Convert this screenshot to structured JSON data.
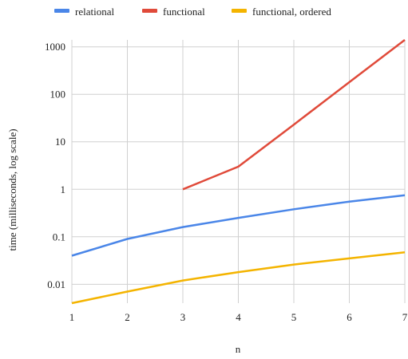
{
  "chart_data": {
    "type": "line",
    "title": "",
    "xlabel": "n",
    "ylabel": "time (milliseconds, log scale)",
    "y_scale": "log",
    "xlim": [
      1,
      7
    ],
    "ylim": [
      0.004,
      1400
    ],
    "x_ticks": [
      "1",
      "2",
      "3",
      "4",
      "5",
      "6",
      "7"
    ],
    "y_ticks": [
      "0.01",
      "0.1",
      "1",
      "10",
      "100",
      "1000"
    ],
    "grid": true,
    "legend_position": "top",
    "series": [
      {
        "name": "relational",
        "color": "#4a86e8",
        "x": [
          1,
          2,
          3,
          4,
          5,
          6,
          7
        ],
        "y": [
          0.04,
          0.09,
          0.16,
          0.25,
          0.38,
          0.55,
          0.75
        ]
      },
      {
        "name": "functional",
        "color": "#e04a3a",
        "x": [
          3,
          4,
          5,
          6,
          7
        ],
        "y": [
          1,
          3,
          23,
          180,
          1400
        ]
      },
      {
        "name": "functional, ordered",
        "color": "#f4b400",
        "x": [
          1,
          2,
          3,
          4,
          5,
          6,
          7
        ],
        "y": [
          0.004,
          0.007,
          0.012,
          0.018,
          0.026,
          0.035,
          0.047
        ]
      }
    ]
  }
}
